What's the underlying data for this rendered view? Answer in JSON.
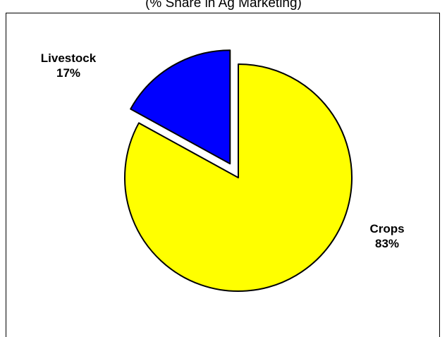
{
  "chart_data": {
    "type": "pie",
    "title": "(% Share in Ag Marketing)",
    "slices": [
      {
        "label": "Crops",
        "percent_label": "83%",
        "value": 83,
        "color": "#FFFF00",
        "exploded": false
      },
      {
        "label": "Livestock",
        "percent_label": "17%",
        "value": 17,
        "color": "#0000FF",
        "exploded": true
      }
    ]
  }
}
